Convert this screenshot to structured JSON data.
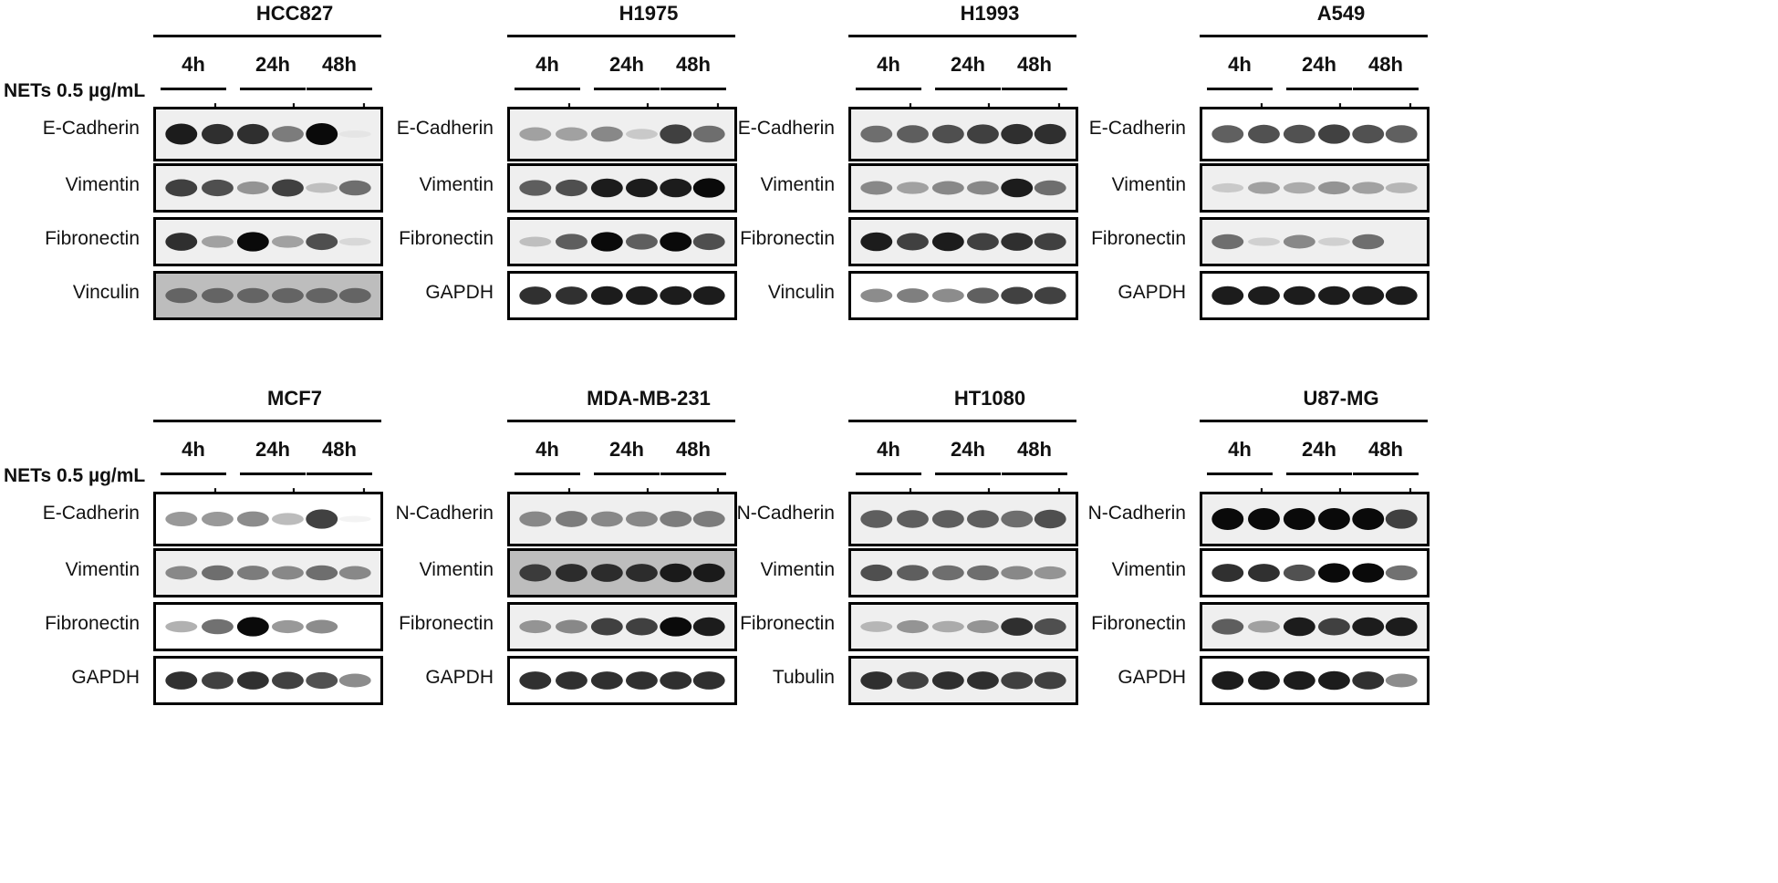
{
  "treatment_label": "NETs 0.5 µg/mL",
  "time_points": [
    "4h",
    "24h",
    "48h"
  ],
  "signs": [
    "-",
    "+",
    "-",
    "+",
    "-",
    "+"
  ],
  "panels": [
    {
      "cell_line": "HCC827",
      "proteins": [
        "E-Cadherin",
        "Vimentin",
        "Fibronectin",
        "Vinculin"
      ],
      "blot_style": [
        "light",
        "light",
        "light",
        "gray"
      ],
      "intensity": [
        [
          0.95,
          0.9,
          0.9,
          0.65,
          1.0,
          0.1
        ],
        [
          0.85,
          0.8,
          0.55,
          0.85,
          0.35,
          0.7
        ],
        [
          0.9,
          0.5,
          1.0,
          0.5,
          0.8,
          0.2
        ],
        [
          0.7,
          0.7,
          0.7,
          0.7,
          0.7,
          0.7
        ]
      ]
    },
    {
      "cell_line": "H1975",
      "proteins": [
        "E-Cadherin",
        "Vimentin",
        "Fibronectin",
        "GAPDH"
      ],
      "blot_style": [
        "light",
        "light",
        "light",
        "white"
      ],
      "intensity": [
        [
          0.5,
          0.5,
          0.6,
          0.3,
          0.85,
          0.7
        ],
        [
          0.75,
          0.8,
          0.95,
          0.95,
          0.95,
          1.0
        ],
        [
          0.35,
          0.75,
          1.0,
          0.75,
          1.0,
          0.8
        ],
        [
          0.9,
          0.9,
          0.95,
          0.95,
          0.95,
          0.95
        ]
      ]
    },
    {
      "cell_line": "H1993",
      "proteins": [
        "E-Cadherin",
        "Vimentin",
        "Fibronectin",
        "Vinculin"
      ],
      "blot_style": [
        "light",
        "light",
        "light",
        "white"
      ],
      "intensity": [
        [
          0.7,
          0.75,
          0.8,
          0.85,
          0.9,
          0.9
        ],
        [
          0.6,
          0.5,
          0.6,
          0.6,
          0.95,
          0.7
        ],
        [
          0.95,
          0.85,
          0.95,
          0.85,
          0.9,
          0.85
        ],
        [
          0.6,
          0.65,
          0.6,
          0.75,
          0.85,
          0.85
        ]
      ]
    },
    {
      "cell_line": "A549",
      "proteins": [
        "E-Cadherin",
        "Vimentin",
        "Fibronectin",
        "GAPDH"
      ],
      "blot_style": [
        "white",
        "light",
        "light",
        "white"
      ],
      "intensity": [
        [
          0.75,
          0.8,
          0.8,
          0.85,
          0.8,
          0.75
        ],
        [
          0.3,
          0.5,
          0.45,
          0.55,
          0.5,
          0.4
        ],
        [
          0.7,
          0.25,
          0.6,
          0.25,
          0.7,
          0.0
        ],
        [
          0.95,
          0.95,
          0.95,
          0.95,
          0.95,
          0.95
        ]
      ]
    },
    {
      "cell_line": "MCF7",
      "proteins": [
        "E-Cadherin",
        "Vimentin",
        "Fibronectin",
        "GAPDH"
      ],
      "blot_style": [
        "white",
        "light",
        "white",
        "white"
      ],
      "intensity": [
        [
          0.55,
          0.55,
          0.6,
          0.4,
          0.85,
          0.05
        ],
        [
          0.6,
          0.7,
          0.65,
          0.6,
          0.7,
          0.6
        ],
        [
          0.45,
          0.7,
          1.0,
          0.55,
          0.6,
          0.0
        ],
        [
          0.9,
          0.85,
          0.9,
          0.85,
          0.8,
          0.6
        ]
      ]
    },
    {
      "cell_line": "MDA-MB-231",
      "proteins": [
        "N-Cadherin",
        "Vimentin",
        "Fibronectin",
        "GAPDH"
      ],
      "blot_style": [
        "light",
        "gray",
        "light",
        "white"
      ],
      "intensity": [
        [
          0.6,
          0.65,
          0.6,
          0.6,
          0.65,
          0.65
        ],
        [
          0.85,
          0.9,
          0.9,
          0.9,
          0.95,
          0.95
        ],
        [
          0.55,
          0.6,
          0.85,
          0.85,
          1.0,
          0.95
        ],
        [
          0.9,
          0.9,
          0.9,
          0.9,
          0.9,
          0.9
        ]
      ]
    },
    {
      "cell_line": "HT1080",
      "proteins": [
        "N-Cadherin",
        "Vimentin",
        "Fibronectin",
        "Tubulin"
      ],
      "blot_style": [
        "light",
        "light",
        "light",
        "light"
      ],
      "intensity": [
        [
          0.75,
          0.75,
          0.75,
          0.75,
          0.7,
          0.8
        ],
        [
          0.8,
          0.75,
          0.7,
          0.7,
          0.6,
          0.55
        ],
        [
          0.4,
          0.55,
          0.45,
          0.55,
          0.9,
          0.8
        ],
        [
          0.9,
          0.85,
          0.9,
          0.9,
          0.85,
          0.85
        ]
      ]
    },
    {
      "cell_line": "U87-MG",
      "proteins": [
        "N-Cadherin",
        "Vimentin",
        "Fibronectin",
        "GAPDH"
      ],
      "blot_style": [
        "light",
        "white",
        "light",
        "white"
      ],
      "intensity": [
        [
          1.0,
          1.0,
          1.0,
          1.0,
          1.0,
          0.85
        ],
        [
          0.9,
          0.9,
          0.8,
          1.0,
          1.0,
          0.7
        ],
        [
          0.75,
          0.5,
          0.95,
          0.85,
          0.95,
          0.95
        ],
        [
          0.95,
          0.95,
          0.95,
          0.95,
          0.9,
          0.6
        ]
      ]
    }
  ]
}
